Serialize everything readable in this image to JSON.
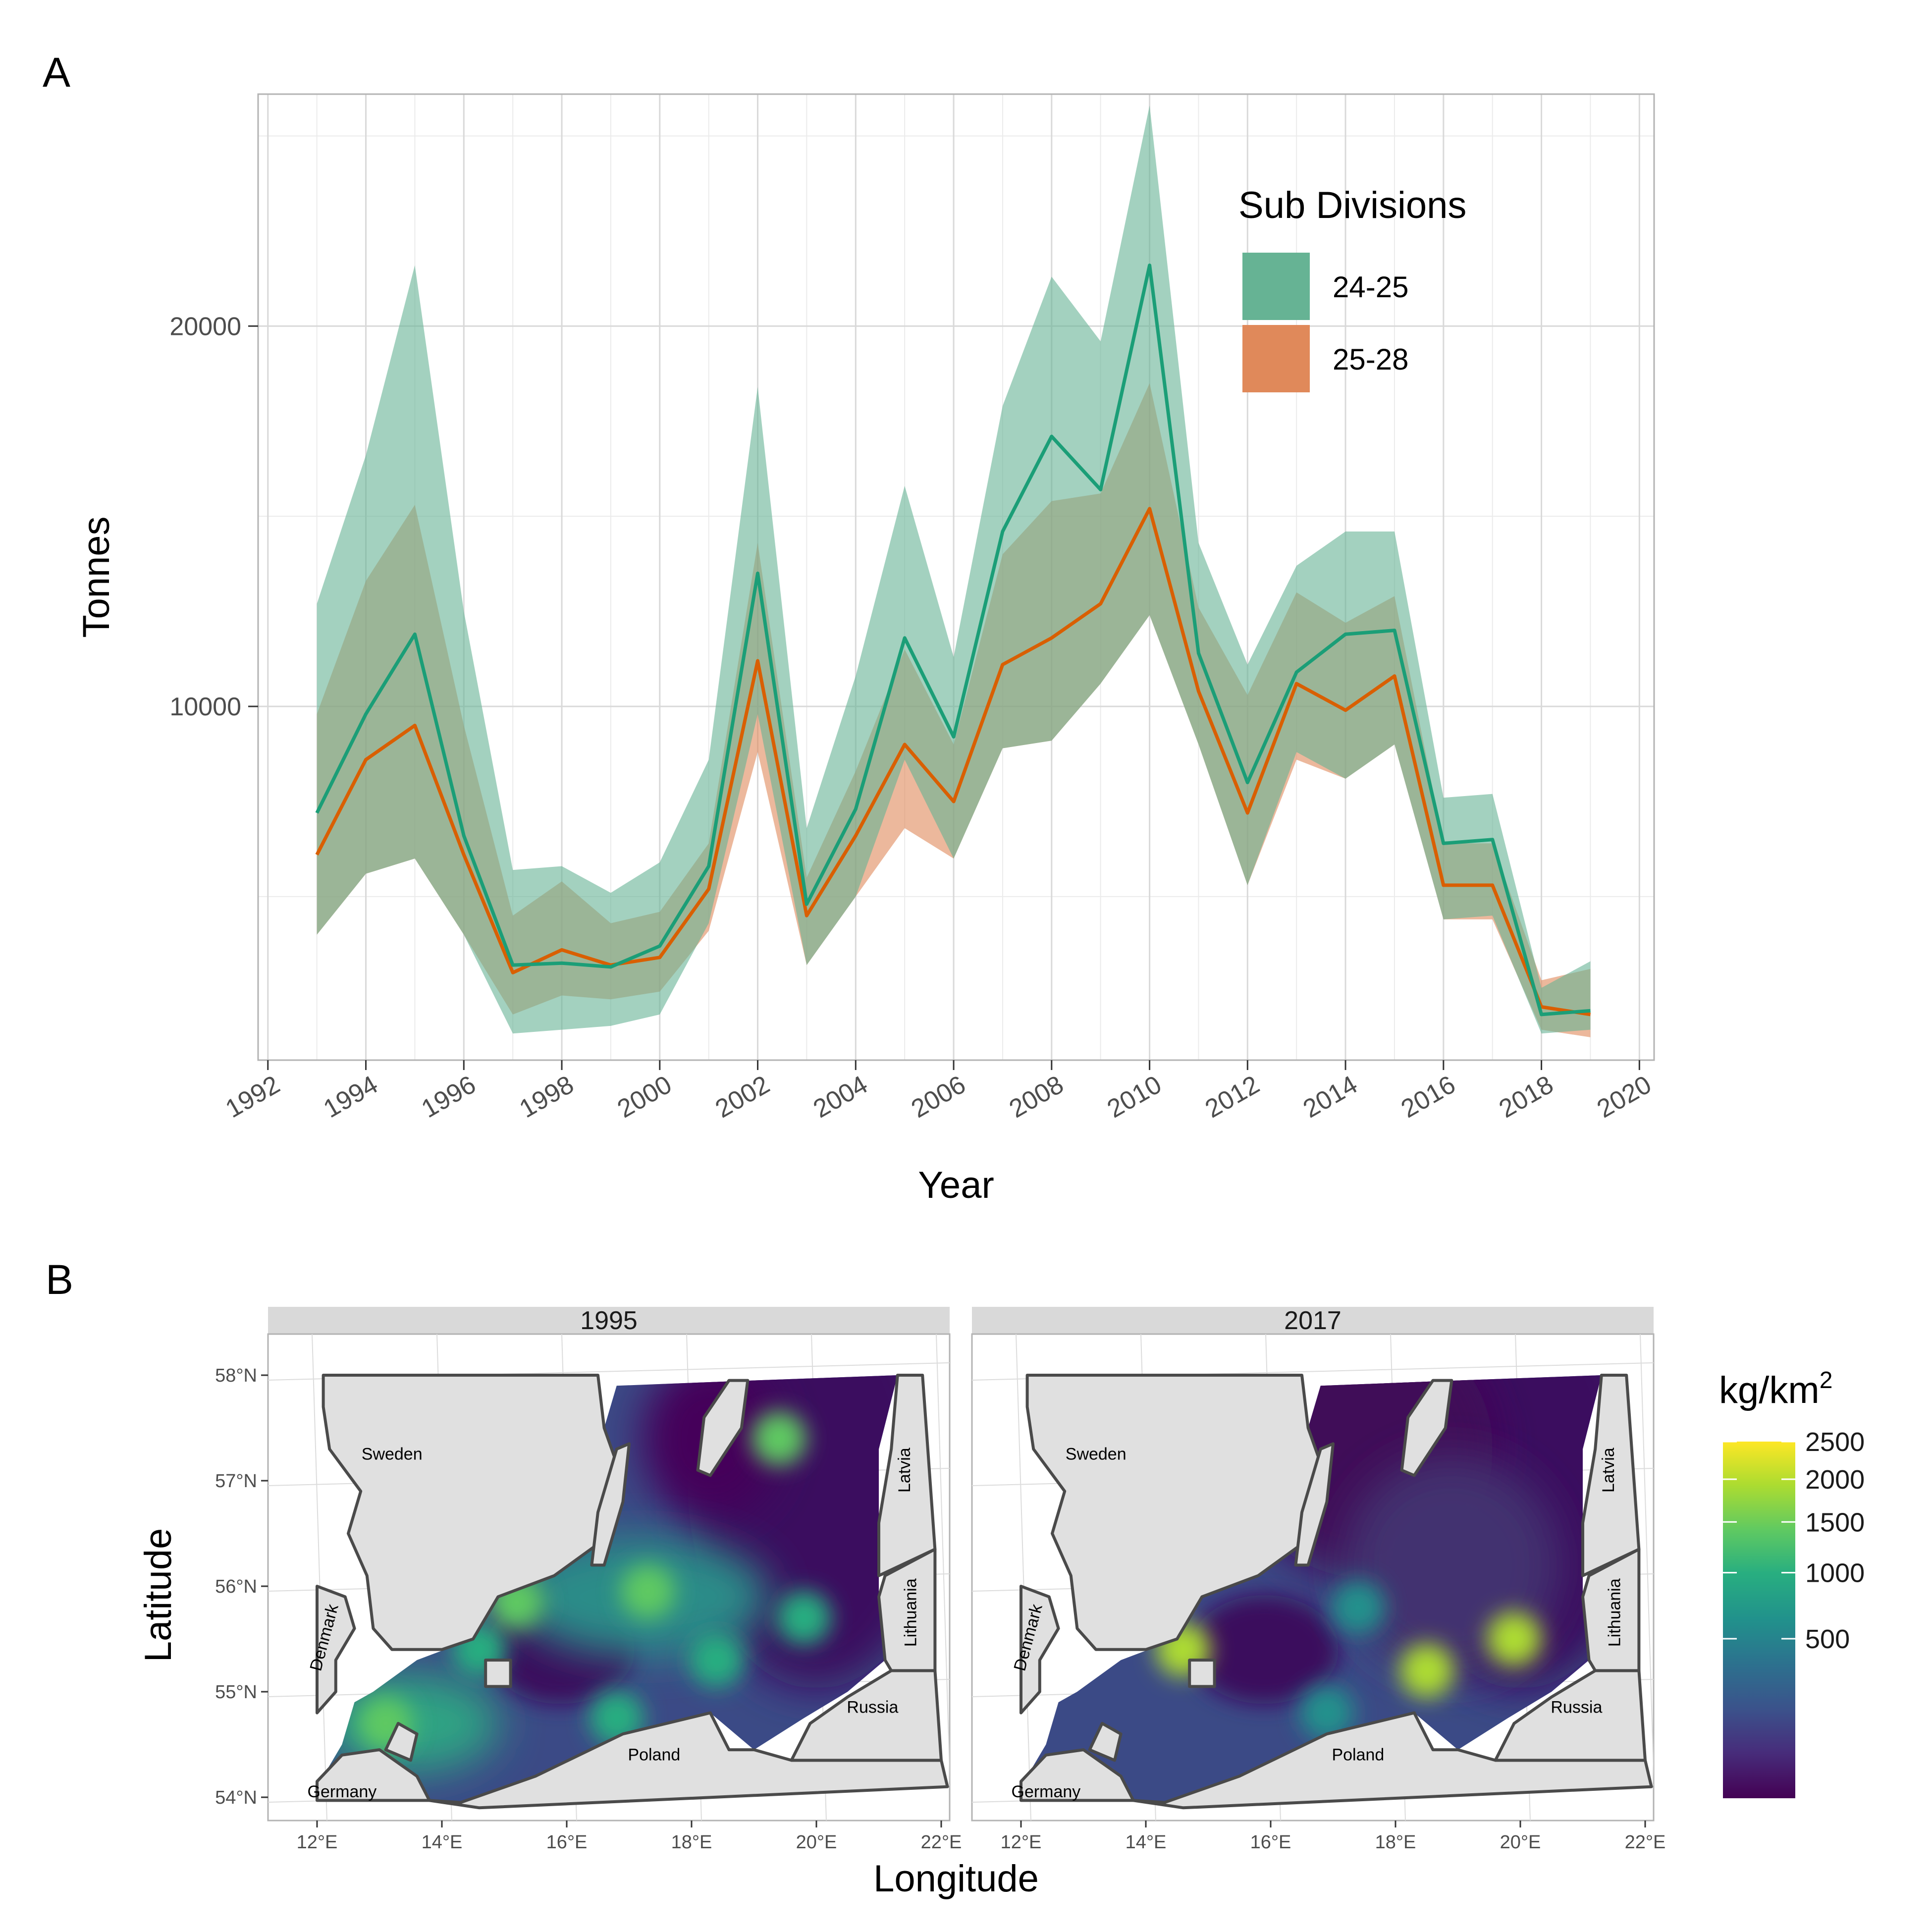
{
  "panel_a": {
    "letter": "A"
  },
  "panel_b": {
    "letter": "B"
  },
  "colors": {
    "sd_24_25_line": "#1b9e77",
    "sd_24_25_band": "#66b394",
    "sd_25_28_line": "#d95f02",
    "sd_25_28_band": "#e0895a",
    "land": "#e0e0e0",
    "coast": "#4a4a4a",
    "grid": "#d9d9d9",
    "strip": "#d9d9d9"
  },
  "chart_data": [
    {
      "type": "line",
      "xlabel": "Year",
      "ylabel": "Tonnes",
      "xlim": [
        1991.8,
        2020.3
      ],
      "ylim": [
        700,
        26100
      ],
      "x_ticks": [
        1992,
        1994,
        1996,
        1998,
        2000,
        2002,
        2004,
        2006,
        2008,
        2010,
        2012,
        2014,
        2016,
        2018,
        2020
      ],
      "y_ticks": [
        10000,
        20000
      ],
      "grid": true,
      "legend": {
        "title": "Sub Divisions",
        "position": "top-right"
      },
      "x": [
        1993,
        1994,
        1995,
        1996,
        1997,
        1998,
        1999,
        2000,
        2001,
        2002,
        2003,
        2004,
        2005,
        2006,
        2007,
        2008,
        2009,
        2010,
        2011,
        2012,
        2013,
        2014,
        2015,
        2016,
        2017,
        2018,
        2019
      ],
      "series": [
        {
          "name": "24-25",
          "values": [
            7200,
            9800,
            11900,
            6600,
            3200,
            3250,
            3150,
            3700,
            5800,
            13500,
            4800,
            7300,
            11800,
            9200,
            14600,
            17100,
            15700,
            21600,
            11400,
            8000,
            10900,
            11900,
            12000,
            6400,
            6500,
            1900,
            2000
          ],
          "lower": [
            4000,
            5600,
            6000,
            4000,
            1400,
            1500,
            1600,
            1900,
            4300,
            9800,
            3200,
            5000,
            8600,
            6000,
            8900,
            9100,
            10600,
            12400,
            9000,
            5300,
            8800,
            8100,
            9000,
            4400,
            4500,
            1400,
            1500
          ],
          "upper": [
            12700,
            16600,
            21600,
            12500,
            5700,
            5800,
            5100,
            5900,
            8600,
            18400,
            6800,
            10800,
            15800,
            11300,
            17900,
            21300,
            19600,
            25800,
            14300,
            11100,
            13700,
            14600,
            14600,
            7600,
            7700,
            2600,
            3300
          ]
        },
        {
          "name": "25-28",
          "values": [
            6100,
            8600,
            9500,
            6100,
            3000,
            3600,
            3200,
            3400,
            5200,
            11200,
            4500,
            6600,
            9000,
            7500,
            11100,
            11800,
            12700,
            15200,
            10400,
            7200,
            10600,
            9900,
            10800,
            5300,
            5300,
            2100,
            1900
          ],
          "lower": [
            4000,
            5600,
            6000,
            4000,
            1900,
            2400,
            2300,
            2500,
            4100,
            8800,
            3200,
            5000,
            6800,
            6000,
            8900,
            9100,
            10600,
            12400,
            9000,
            5300,
            8600,
            8100,
            9000,
            4400,
            4400,
            1500,
            1300
          ],
          "upper": [
            9800,
            13300,
            15300,
            9500,
            4500,
            5400,
            4300,
            4600,
            6400,
            14300,
            5500,
            8300,
            11500,
            9000,
            14000,
            15400,
            15600,
            18500,
            12600,
            10300,
            13000,
            12200,
            12900,
            6400,
            6400,
            2800,
            3100
          ]
        }
      ]
    },
    {
      "type": "heatmap",
      "xlabel": "Longitude",
      "ylabel": "Latitude",
      "x_ticks": [
        "12°E",
        "14°E",
        "16°E",
        "18°E",
        "20°E",
        "22°E"
      ],
      "y_ticks": [
        "58°N",
        "57°N",
        "56°N",
        "55°N",
        "54°N"
      ],
      "facets": [
        "1995",
        "2017"
      ],
      "colorbar": {
        "title": "kg/km",
        "title_superscript": "2",
        "palette": "viridis",
        "range": [
          0,
          2500
        ],
        "ticks": [
          "2500",
          "2000",
          "1500",
          "1000",
          "500"
        ]
      },
      "countries": [
        "Sweden",
        "Denmark",
        "Germany",
        "Poland",
        "Russia",
        "Lithuania",
        "Latvia"
      ],
      "hotspots_1995": [
        {
          "lon": 13.1,
          "lat": 54.7,
          "level": 0.78
        },
        {
          "lon": 14.6,
          "lat": 55.4,
          "level": 0.68
        },
        {
          "lon": 15.2,
          "lat": 55.85,
          "level": 0.72
        },
        {
          "lon": 17.3,
          "lat": 55.95,
          "level": 0.7
        },
        {
          "lon": 19.4,
          "lat": 57.4,
          "level": 0.72
        },
        {
          "lon": 18.4,
          "lat": 55.3,
          "level": 0.66
        },
        {
          "lon": 19.8,
          "lat": 55.7,
          "level": 0.65
        },
        {
          "lon": 16.8,
          "lat": 54.75,
          "level": 0.6
        }
      ],
      "hotspots_2017": [
        {
          "lon": 14.6,
          "lat": 55.4,
          "level": 0.82
        },
        {
          "lon": 18.5,
          "lat": 55.2,
          "level": 0.9
        },
        {
          "lon": 19.9,
          "lat": 55.5,
          "level": 0.85
        },
        {
          "lon": 17.4,
          "lat": 55.8,
          "level": 0.55
        },
        {
          "lon": 16.9,
          "lat": 54.8,
          "level": 0.5
        }
      ]
    }
  ]
}
